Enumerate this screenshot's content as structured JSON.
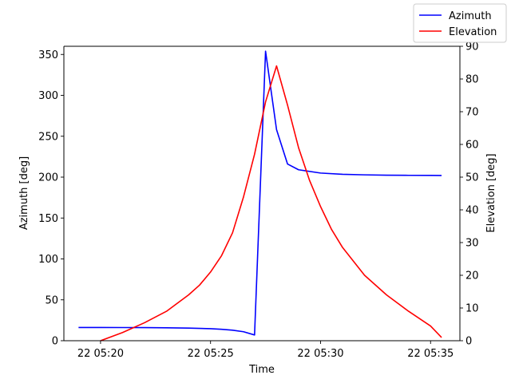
{
  "chart_data": {
    "type": "line",
    "xlabel": "Time",
    "ylabel_left": "Azimuth [deg]",
    "ylabel_right": "Elevation [deg]",
    "x_unit": "minute",
    "xlim": [
      "22 05:18:20",
      "22 05:36:20"
    ],
    "ylim_left": [
      0,
      360
    ],
    "ylim_right": [
      0,
      90
    ],
    "x_ticks": [
      {
        "value": "22 05:20",
        "label": "22 05:20"
      },
      {
        "value": "22 05:25",
        "label": "22 05:25"
      },
      {
        "value": "22 05:30",
        "label": "22 05:30"
      },
      {
        "value": "22 05:35",
        "label": "22 05:35"
      }
    ],
    "y_ticks_left": [
      0,
      50,
      100,
      150,
      200,
      250,
      300,
      350
    ],
    "y_ticks_right": [
      0,
      10,
      20,
      30,
      40,
      50,
      60,
      70,
      80,
      90
    ],
    "legend": {
      "placement": "top-right"
    },
    "grid": false,
    "series": [
      {
        "name": "Azimuth",
        "axis": "left",
        "color": "#0000ff",
        "points": [
          [
            "22 05:19:00",
            16.2
          ],
          [
            "22 05:20:00",
            16.2
          ],
          [
            "22 05:21:00",
            16.1
          ],
          [
            "22 05:22:00",
            16.0
          ],
          [
            "22 05:23:00",
            15.8
          ],
          [
            "22 05:24:00",
            15.4
          ],
          [
            "22 05:25:00",
            14.7
          ],
          [
            "22 05:25:30",
            14.0
          ],
          [
            "22 05:26:00",
            12.9
          ],
          [
            "22 05:26:30",
            11.0
          ],
          [
            "22 05:27:00",
            7.0
          ],
          [
            "22 05:27:30",
            354.0
          ],
          [
            "22 05:28:00",
            258.0
          ],
          [
            "22 05:28:30",
            216.0
          ],
          [
            "22 05:29:00",
            209.0
          ],
          [
            "22 05:30:00",
            205.0
          ],
          [
            "22 05:31:00",
            203.5
          ],
          [
            "22 05:32:00",
            202.8
          ],
          [
            "22 05:33:00",
            202.4
          ],
          [
            "22 05:34:00",
            202.2
          ],
          [
            "22 05:35:00",
            202.1
          ],
          [
            "22 05:35:30",
            202.0
          ]
        ]
      },
      {
        "name": "Elevation",
        "axis": "right",
        "color": "#ff0000",
        "points": [
          [
            "22 05:20:00",
            0.0
          ],
          [
            "22 05:21:00",
            2.5
          ],
          [
            "22 05:22:00",
            5.5
          ],
          [
            "22 05:23:00",
            9.0
          ],
          [
            "22 05:24:00",
            14.0
          ],
          [
            "22 05:24:30",
            17.0
          ],
          [
            "22 05:25:00",
            21.0
          ],
          [
            "22 05:25:30",
            26.0
          ],
          [
            "22 05:26:00",
            33.0
          ],
          [
            "22 05:26:30",
            44.0
          ],
          [
            "22 05:27:00",
            57.0
          ],
          [
            "22 05:27:30",
            73.0
          ],
          [
            "22 05:28:00",
            84.0
          ],
          [
            "22 05:28:30",
            72.0
          ],
          [
            "22 05:29:00",
            59.0
          ],
          [
            "22 05:29:30",
            49.0
          ],
          [
            "22 05:30:00",
            41.0
          ],
          [
            "22 05:30:30",
            34.0
          ],
          [
            "22 05:31:00",
            28.5
          ],
          [
            "22 05:32:00",
            20.0
          ],
          [
            "22 05:33:00",
            14.0
          ],
          [
            "22 05:34:00",
            9.0
          ],
          [
            "22 05:35:00",
            4.5
          ],
          [
            "22 05:35:30",
            1.0
          ]
        ]
      }
    ]
  }
}
